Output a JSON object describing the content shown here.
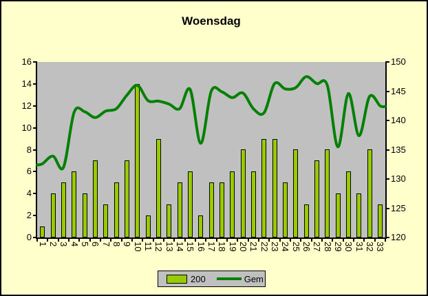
{
  "title": "Woensdag",
  "colors": {
    "background": "#FFFFCC",
    "plot_background": "#C0C0C0",
    "bar_fill": "#99CC00",
    "bar_border": "#000000",
    "line_color": "#008000",
    "axis_color": "#000000",
    "text_color": "#000000"
  },
  "legend": {
    "items": [
      {
        "label": "200",
        "swatch": "bar"
      },
      {
        "label": "Gem",
        "swatch": "line"
      }
    ]
  },
  "chart_data": {
    "type": "bar",
    "title": "Woensdag",
    "categories": [
      1,
      2,
      3,
      4,
      5,
      6,
      7,
      8,
      9,
      10,
      11,
      12,
      13,
      14,
      15,
      16,
      17,
      18,
      19,
      20,
      21,
      22,
      23,
      24,
      25,
      26,
      27,
      28,
      29,
      30,
      31,
      32,
      33
    ],
    "series": [
      {
        "name": "200",
        "type": "bar",
        "axis": "left",
        "values": [
          1,
          4,
          5,
          6,
          4,
          7,
          3,
          5,
          7,
          14,
          2,
          9,
          3,
          5,
          6,
          2,
          5,
          5,
          6,
          8,
          6,
          9,
          9,
          5,
          8,
          3,
          7,
          8,
          4,
          6,
          4,
          8,
          3
        ]
      },
      {
        "name": "Gem",
        "type": "line",
        "axis": "right",
        "smooth": true,
        "edge_start": 132.4,
        "edge_end": 142.4,
        "values": [
          132.6,
          133.9,
          132.0,
          141.4,
          141.5,
          140.5,
          141.6,
          142.0,
          144.3,
          146.0,
          143.4,
          143.3,
          142.8,
          142.0,
          145.3,
          136.1,
          145.0,
          144.9,
          143.9,
          144.7,
          142.0,
          141.3,
          146.3,
          145.4,
          145.6,
          147.5,
          146.3,
          146.0,
          135.5,
          144.6,
          137.4,
          144.1,
          142.5
        ]
      }
    ],
    "left_axis": {
      "min": 0,
      "max": 16,
      "step": 2,
      "ticks": [
        0,
        2,
        4,
        6,
        8,
        10,
        12,
        14,
        16
      ]
    },
    "right_axis": {
      "min": 120,
      "max": 150,
      "step": 5,
      "ticks": [
        120,
        125,
        130,
        135,
        140,
        145,
        150
      ]
    },
    "x_tick_labels_rotated": true,
    "grid": false,
    "legend_position": "bottom"
  }
}
